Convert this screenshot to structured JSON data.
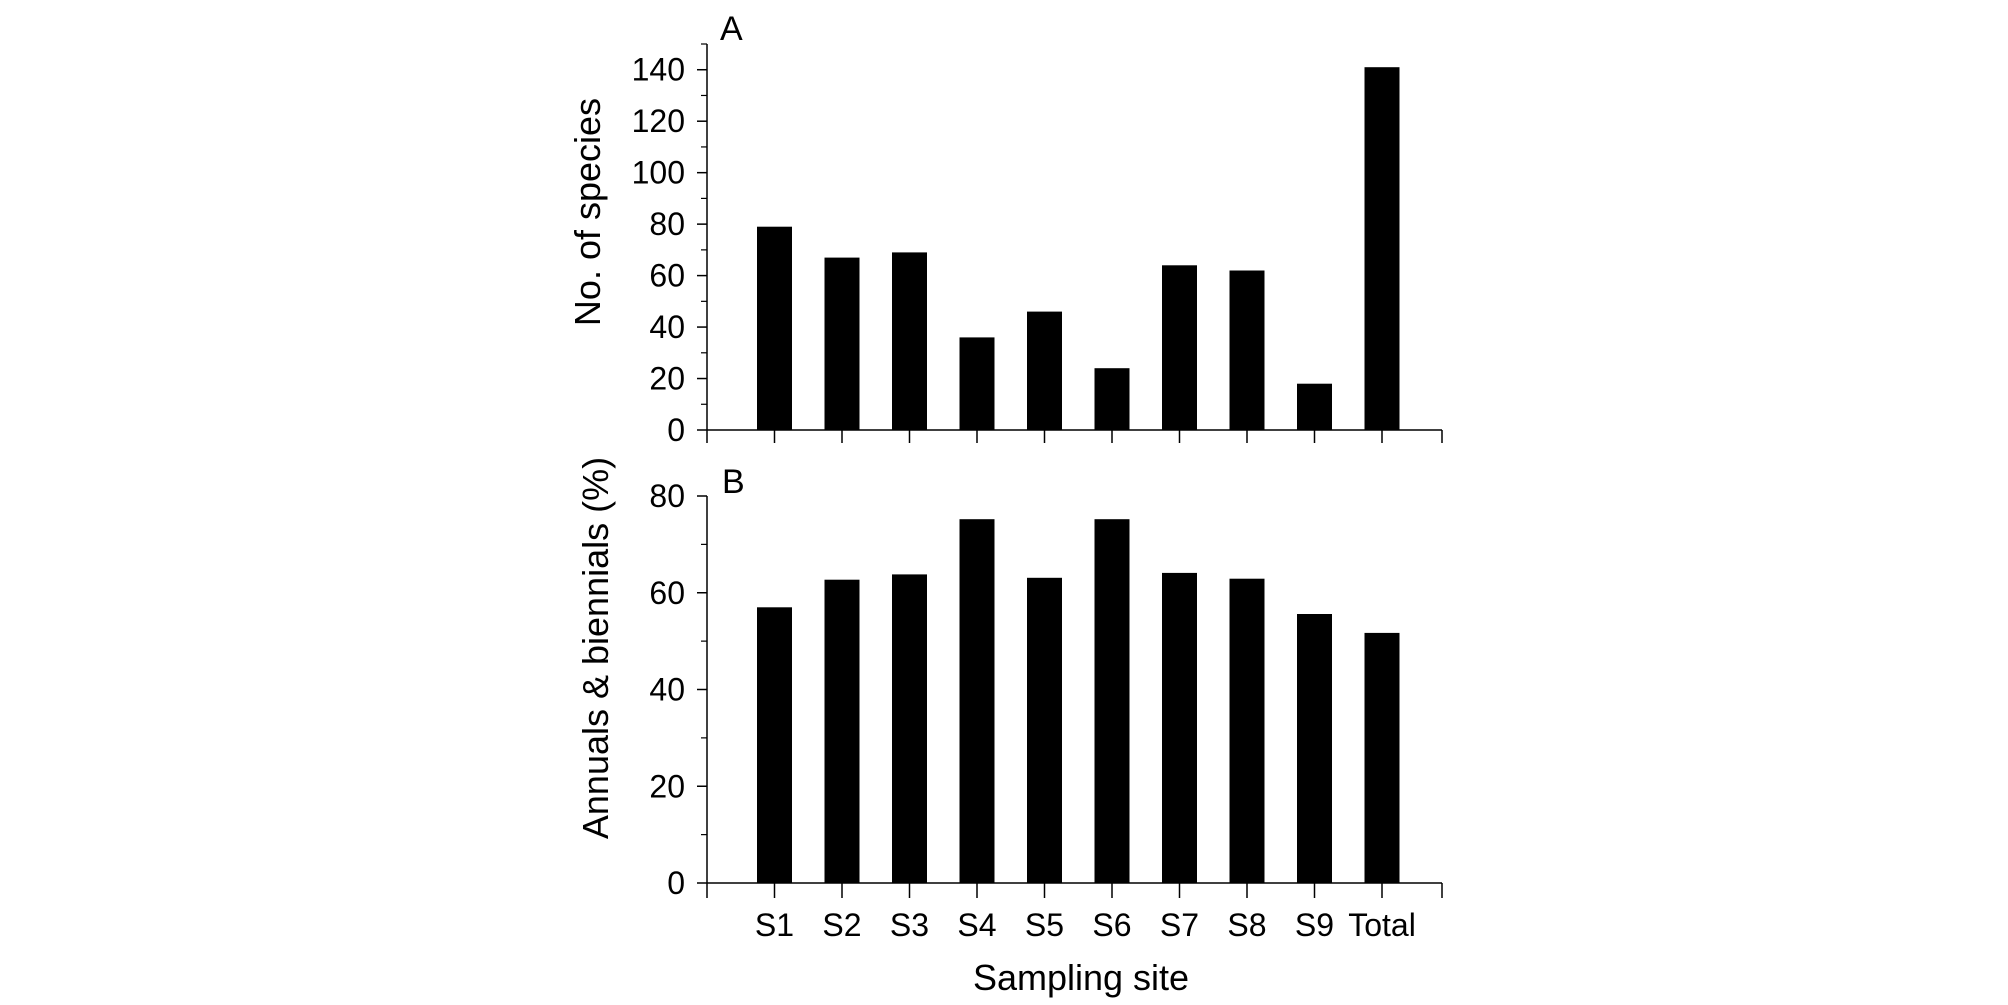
{
  "chart_data": [
    {
      "type": "bar",
      "panel_label": "A",
      "title": "",
      "xlabel": "",
      "ylabel": "No. of species",
      "categories": [
        "S1",
        "S2",
        "S3",
        "S4",
        "S5",
        "S6",
        "S7",
        "S8",
        "S9",
        "Total"
      ],
      "values": [
        79,
        67,
        69,
        36,
        46,
        24,
        64,
        62,
        18,
        141
      ],
      "ylim": [
        0,
        150
      ],
      "yticks": [
        0,
        20,
        40,
        60,
        80,
        100,
        120,
        140
      ],
      "yticks_minor": [
        10,
        30,
        50,
        70,
        90,
        110,
        130,
        150
      ],
      "show_x_tick_labels": false,
      "grid": false,
      "bar_color": "#000000"
    },
    {
      "type": "bar",
      "panel_label": "B",
      "title": "",
      "xlabel": "Sampling site",
      "ylabel": "Annuals & biennials (%)",
      "categories": [
        "S1",
        "S2",
        "S3",
        "S4",
        "S5",
        "S6",
        "S7",
        "S8",
        "S9",
        "Total"
      ],
      "values": [
        57,
        62.7,
        63.8,
        75.2,
        63.1,
        75.2,
        64.1,
        62.9,
        55.6,
        51.7
      ],
      "ylim": [
        0,
        80
      ],
      "yticks": [
        0,
        20,
        40,
        60,
        80
      ],
      "yticks_minor": [
        10,
        30,
        50,
        70
      ],
      "show_x_tick_labels": true,
      "grid": false,
      "bar_color": "#000000"
    }
  ]
}
